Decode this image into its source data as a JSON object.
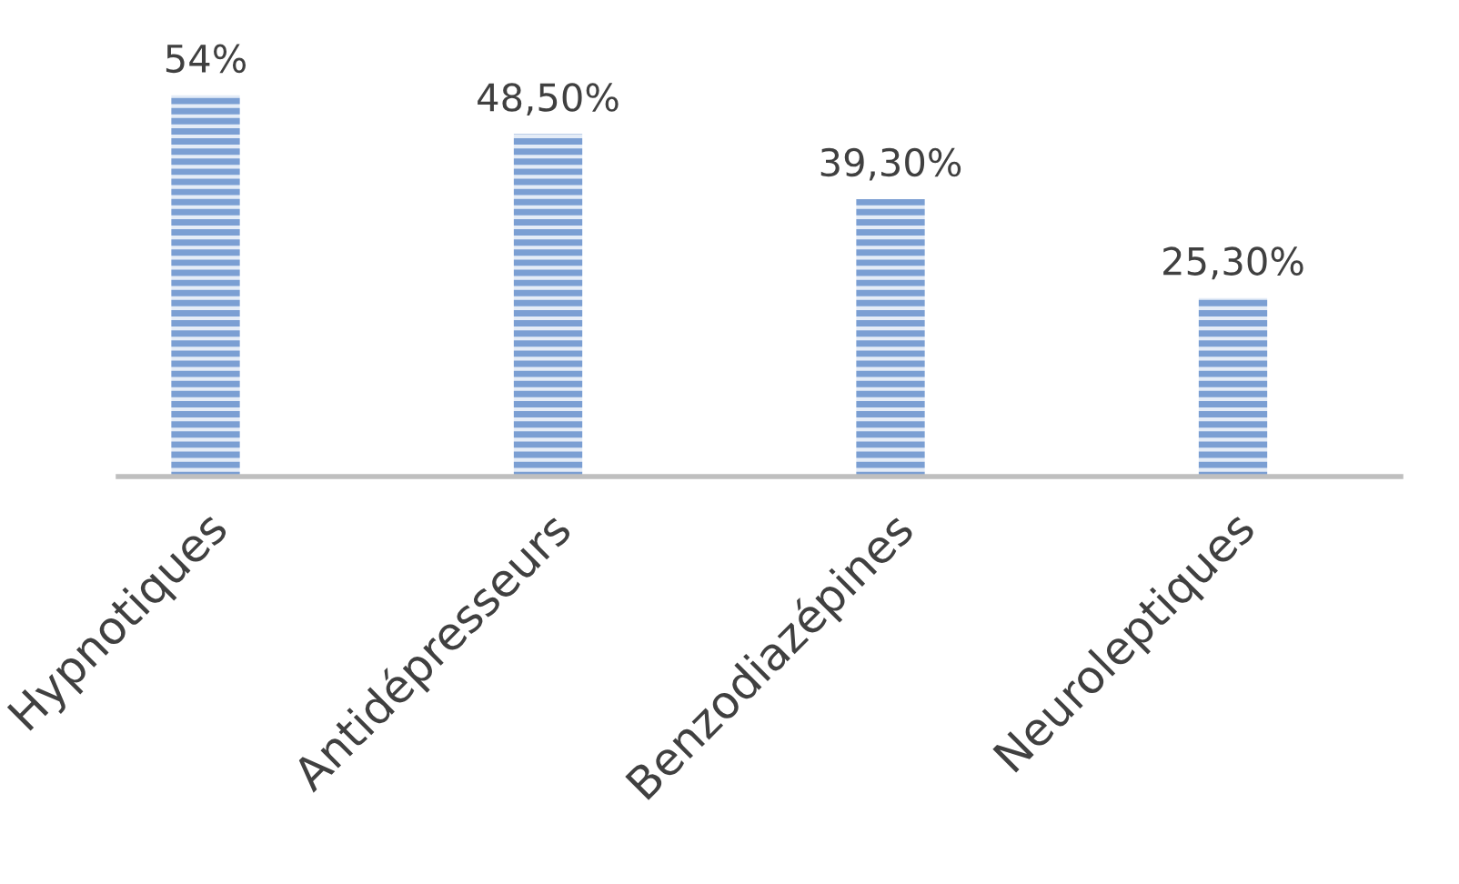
{
  "chart_data": {
    "type": "bar",
    "categories": [
      "Hypnotiques",
      "Antidépresseurs",
      "Benzodiazépines",
      "Neuroleptiques"
    ],
    "values": [
      54,
      48.5,
      39.3,
      25.3
    ],
    "value_labels": [
      "54%",
      "48,50%",
      "39,30%",
      "25,30%"
    ],
    "color": "#7b9fd3"
  }
}
